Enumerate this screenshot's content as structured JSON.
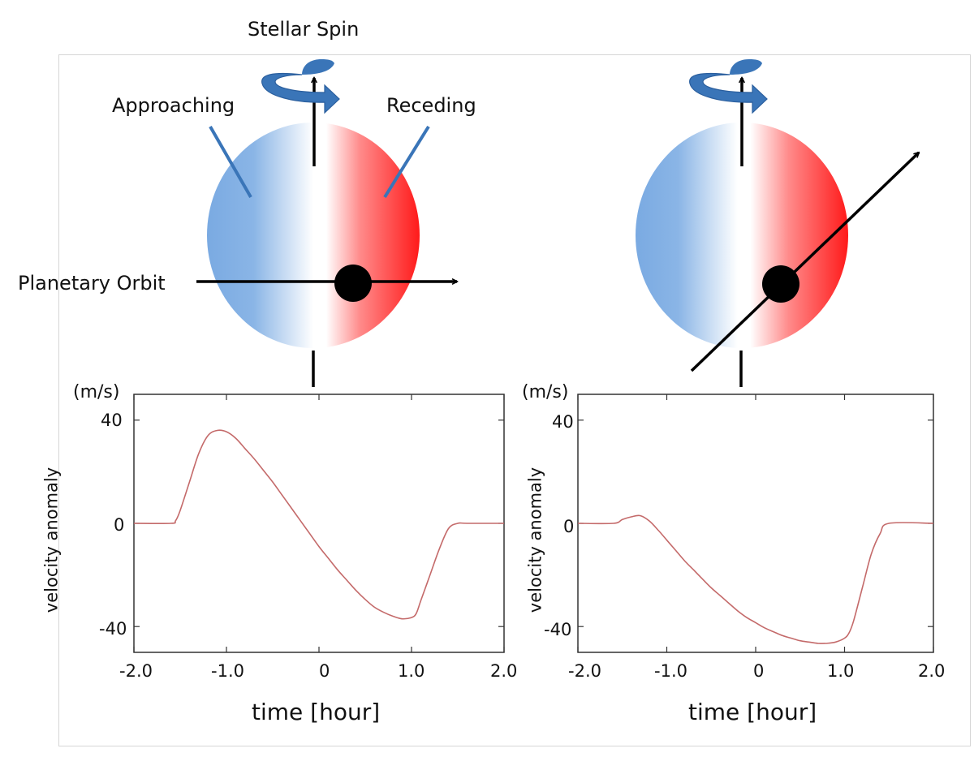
{
  "figure": {
    "labels": {
      "stellar_spin": "Stellar Spin",
      "approaching": "Approaching",
      "receding": "Receding",
      "planetary_orbit": "Planetary Orbit"
    },
    "colors": {
      "approaching_side": "#7aaae2",
      "receding_side": "#ff1a1a",
      "spin_arrow": "#3a75b8",
      "curve": "#c46a6a"
    }
  },
  "chart_data": [
    {
      "type": "line",
      "ylabel": "velocity anomaly",
      "yunit": "(m/s)",
      "xlabel": "time [hour]",
      "xlim": [
        -2.0,
        2.0
      ],
      "ylim": [
        -50,
        50
      ],
      "xticks": [
        "-2.0",
        "-1.0",
        "0",
        "1.0",
        "2.0"
      ],
      "yticks": [
        "40",
        "0",
        "-40"
      ],
      "x": [
        -2.0,
        -1.6,
        -1.55,
        -1.5,
        -1.4,
        -1.3,
        -1.2,
        -1.1,
        -1.0,
        -0.9,
        -0.8,
        -0.7,
        -0.6,
        -0.5,
        -0.4,
        -0.3,
        -0.2,
        -0.1,
        0.0,
        0.1,
        0.2,
        0.3,
        0.4,
        0.5,
        0.6,
        0.7,
        0.8,
        0.9,
        1.0,
        1.05,
        1.1,
        1.2,
        1.3,
        1.4,
        1.5,
        1.6,
        2.0
      ],
      "y": [
        0,
        0,
        1,
        5,
        16,
        27,
        34,
        36,
        35.5,
        33,
        29,
        25,
        20.5,
        16,
        11,
        6,
        1,
        -4,
        -9,
        -13.5,
        -18,
        -22,
        -26,
        -29.5,
        -32.5,
        -34.5,
        -36,
        -37,
        -36.5,
        -35,
        -30,
        -20,
        -10,
        -2,
        0,
        0,
        0
      ]
    },
    {
      "type": "line",
      "ylabel": "velocity anomaly",
      "yunit": "(m/s)",
      "xlabel": "time [hour]",
      "xlim": [
        -2.0,
        2.0
      ],
      "ylim": [
        -50,
        50
      ],
      "xticks": [
        "-2.0",
        "-1.0",
        "0",
        "1.0",
        "2.0"
      ],
      "yticks": [
        "40",
        "0",
        "-40"
      ],
      "x": [
        -2.0,
        -1.6,
        -1.5,
        -1.4,
        -1.3,
        -1.2,
        -1.1,
        -1.0,
        -0.9,
        -0.8,
        -0.7,
        -0.6,
        -0.5,
        -0.4,
        -0.3,
        -0.2,
        -0.1,
        0.0,
        0.1,
        0.2,
        0.3,
        0.4,
        0.5,
        0.6,
        0.7,
        0.8,
        0.9,
        1.0,
        1.05,
        1.1,
        1.2,
        1.3,
        1.4,
        1.5,
        2.0
      ],
      "y": [
        0,
        0,
        1.5,
        2.5,
        3,
        1,
        -2.5,
        -6.5,
        -10.5,
        -14.5,
        -18,
        -21.5,
        -25,
        -28,
        -31,
        -34,
        -36.5,
        -38.5,
        -40.5,
        -42,
        -43.5,
        -44.5,
        -45.5,
        -46,
        -46.5,
        -46.5,
        -46,
        -44.5,
        -42.5,
        -38,
        -25,
        -12,
        -4,
        0,
        0
      ]
    }
  ]
}
